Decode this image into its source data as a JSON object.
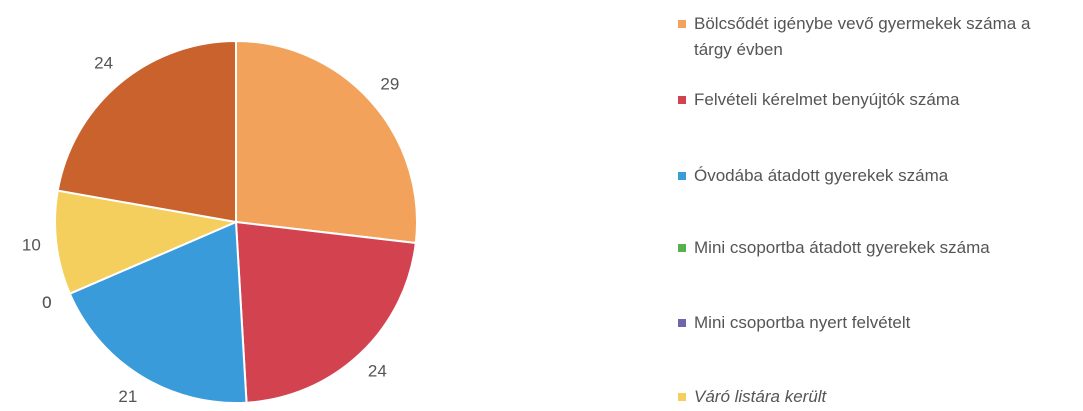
{
  "chart_data": {
    "type": "pie",
    "categories": [
      "Bölcsődét igénybe vevő gyermekek száma a tárgy évben",
      "Felvételi kérelmet benyújtók száma",
      "Óvodába átadott gyerekek száma",
      "Mini csoportba átadott gyerekek száma",
      "Mini csoportba nyert felvételt",
      "Váró listára került",
      null
    ],
    "values": [
      29,
      24,
      21,
      0,
      0,
      10,
      24
    ],
    "colors": [
      "#f2a25a",
      "#d2424f",
      "#3a9bdb",
      "#55b04d",
      "#7263ad",
      "#f4cf5e",
      "#c9622d"
    ]
  }
}
